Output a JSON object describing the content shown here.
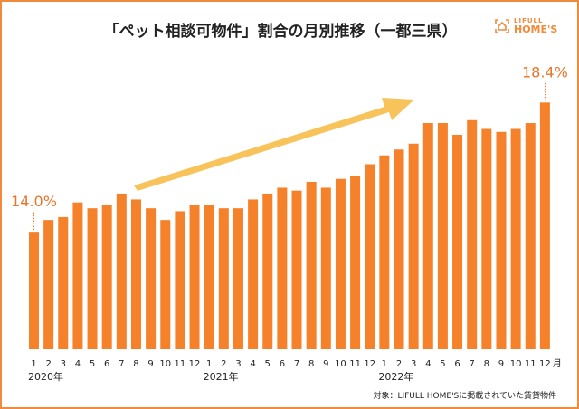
{
  "chart_data": {
    "type": "bar",
    "title": "「ペット相談可物件」割合の月別推移（一都三県）",
    "categories": [
      "1",
      "2",
      "3",
      "4",
      "5",
      "6",
      "7",
      "8",
      "9",
      "10",
      "11",
      "12",
      "1",
      "2",
      "3",
      "4",
      "5",
      "6",
      "7",
      "8",
      "9",
      "10",
      "11",
      "12",
      "1",
      "2",
      "3",
      "4",
      "5",
      "6",
      "7",
      "8",
      "9",
      "10",
      "11",
      "12"
    ],
    "month_unit": "月",
    "years": [
      {
        "label": "2020年",
        "start_index": 0
      },
      {
        "label": "2021年",
        "start_index": 12
      },
      {
        "label": "2022年",
        "start_index": 24
      }
    ],
    "values": [
      14.0,
      14.4,
      14.5,
      15.0,
      14.8,
      14.9,
      15.3,
      15.1,
      14.8,
      14.4,
      14.7,
      14.9,
      14.9,
      14.8,
      14.8,
      15.1,
      15.3,
      15.5,
      15.4,
      15.7,
      15.5,
      15.8,
      15.9,
      16.3,
      16.6,
      16.8,
      17.0,
      17.7,
      17.7,
      17.3,
      17.8,
      17.5,
      17.4,
      17.5,
      17.7,
      18.4
    ],
    "unit": "%",
    "data_labels": [
      {
        "index": 0,
        "text": "14.0%"
      },
      {
        "index": 35,
        "text": "18.4%"
      }
    ],
    "ylim": [
      10,
      18.6
    ],
    "grid": false,
    "bar_color": "#f5822a",
    "trend_arrow_color": "#f9c35c",
    "label_color": "#e8752a"
  },
  "logo": {
    "line1": "LIFULL",
    "line2": "HOME'S",
    "color": "#f08a3c"
  },
  "footnote": "対象：LIFULL HOME'Sに掲載されていた賃貸物件"
}
